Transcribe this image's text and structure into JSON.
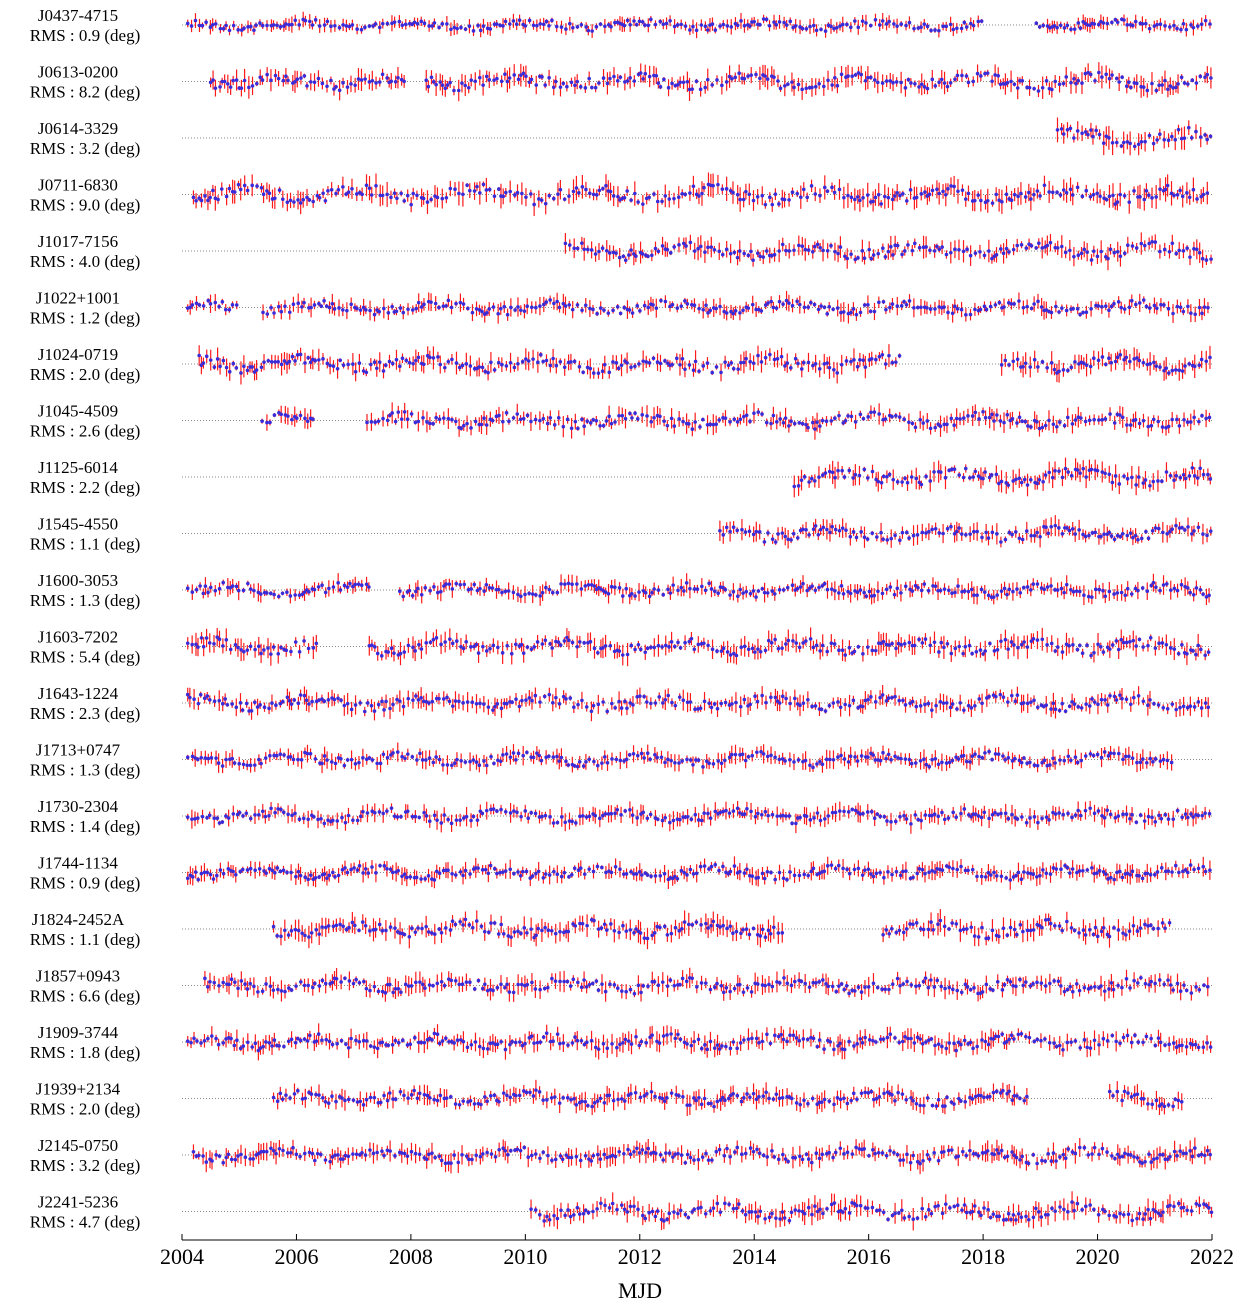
{
  "chart_data": {
    "type": "scatter",
    "xlabel": "MJD",
    "xlim": [
      2004,
      2022
    ],
    "x_ticks": [
      "2004",
      "2006",
      "2008",
      "2010",
      "2012",
      "2014",
      "2016",
      "2018",
      "2020",
      "2022"
    ],
    "grid": false,
    "error_bar_color": "#ff1a1a",
    "point_color": "#3a2bd9",
    "series": [
      {
        "name": "J0437-4715",
        "rms": "RMS : 0.9 (deg)",
        "start": 2004.1,
        "end": 2022.0,
        "gaps": [
          [
            2018.0,
            2018.9
          ]
        ],
        "amp": 0.35
      },
      {
        "name": "J0613-0200",
        "rms": "RMS : 8.2 (deg)",
        "start": 2004.5,
        "end": 2022.0,
        "gaps": [
          [
            2007.9,
            2008.2
          ]
        ],
        "amp": 0.55
      },
      {
        "name": "J0614-3329",
        "rms": "RMS : 3.2 (deg)",
        "start": 2019.3,
        "end": 2022.0,
        "gaps": [],
        "amp": 0.6
      },
      {
        "name": "J0711-6830",
        "rms": "RMS : 9.0 (deg)",
        "start": 2004.2,
        "end": 2022.0,
        "gaps": [],
        "amp": 0.6
      },
      {
        "name": "J1017-7156",
        "rms": "RMS : 4.0 (deg)",
        "start": 2010.7,
        "end": 2022.0,
        "gaps": [],
        "amp": 0.55
      },
      {
        "name": "J1022+1001",
        "rms": "RMS : 1.2 (deg)",
        "start": 2004.1,
        "end": 2022.0,
        "gaps": [
          [
            2005.0,
            2005.4
          ]
        ],
        "amp": 0.45
      },
      {
        "name": "J1024-0719",
        "rms": "RMS : 2.0 (deg)",
        "start": 2004.3,
        "end": 2022.0,
        "gaps": [
          [
            2016.6,
            2018.3
          ]
        ],
        "amp": 0.55
      },
      {
        "name": "J1045-4509",
        "rms": "RMS : 2.6 (deg)",
        "start": 2005.4,
        "end": 2022.0,
        "gaps": [
          [
            2006.3,
            2007.2
          ]
        ],
        "amp": 0.5
      },
      {
        "name": "J1125-6014",
        "rms": "RMS : 2.2 (deg)",
        "start": 2014.7,
        "end": 2022.0,
        "gaps": [],
        "amp": 0.55
      },
      {
        "name": "J1545-4550",
        "rms": "RMS : 1.1 (deg)",
        "start": 2013.4,
        "end": 2022.0,
        "gaps": [],
        "amp": 0.5
      },
      {
        "name": "J1600-3053",
        "rms": "RMS : 1.3 (deg)",
        "start": 2004.1,
        "end": 2022.0,
        "gaps": [
          [
            2007.3,
            2007.8
          ]
        ],
        "amp": 0.45
      },
      {
        "name": "J1603-7202",
        "rms": "RMS : 5.4 (deg)",
        "start": 2004.1,
        "end": 2022.0,
        "gaps": [
          [
            2006.4,
            2007.2
          ]
        ],
        "amp": 0.55
      },
      {
        "name": "J1643-1224",
        "rms": "RMS : 2.3 (deg)",
        "start": 2004.1,
        "end": 2022.0,
        "gaps": [],
        "amp": 0.5
      },
      {
        "name": "J1713+0747",
        "rms": "RMS : 1.3 (deg)",
        "start": 2004.1,
        "end": 2021.3,
        "gaps": [],
        "amp": 0.45
      },
      {
        "name": "J1730-2304",
        "rms": "RMS : 1.4 (deg)",
        "start": 2004.1,
        "end": 2022.0,
        "gaps": [],
        "amp": 0.45
      },
      {
        "name": "J1744-1134",
        "rms": "RMS : 0.9 (deg)",
        "start": 2004.1,
        "end": 2022.0,
        "gaps": [],
        "amp": 0.45
      },
      {
        "name": "J1824-2452A",
        "rms": "RMS : 1.1 (deg)",
        "start": 2005.6,
        "end": 2021.3,
        "gaps": [
          [
            2014.5,
            2016.2
          ]
        ],
        "amp": 0.55
      },
      {
        "name": "J1857+0943",
        "rms": "RMS : 6.6 (deg)",
        "start": 2004.4,
        "end": 2022.0,
        "gaps": [],
        "amp": 0.5
      },
      {
        "name": "J1909-3744",
        "rms": "RMS : 1.8 (deg)",
        "start": 2004.1,
        "end": 2022.0,
        "gaps": [],
        "amp": 0.5
      },
      {
        "name": "J1939+2134",
        "rms": "RMS : 2.0 (deg)",
        "start": 2005.6,
        "end": 2021.5,
        "gaps": [
          [
            2018.8,
            2020.2
          ]
        ],
        "amp": 0.5
      },
      {
        "name": "J2145-0750",
        "rms": "RMS : 3.2 (deg)",
        "start": 2004.2,
        "end": 2022.0,
        "gaps": [],
        "amp": 0.5
      },
      {
        "name": "J2241-5236",
        "rms": "RMS : 4.7 (deg)",
        "start": 2010.1,
        "end": 2022.0,
        "gaps": [],
        "amp": 0.55
      }
    ]
  }
}
